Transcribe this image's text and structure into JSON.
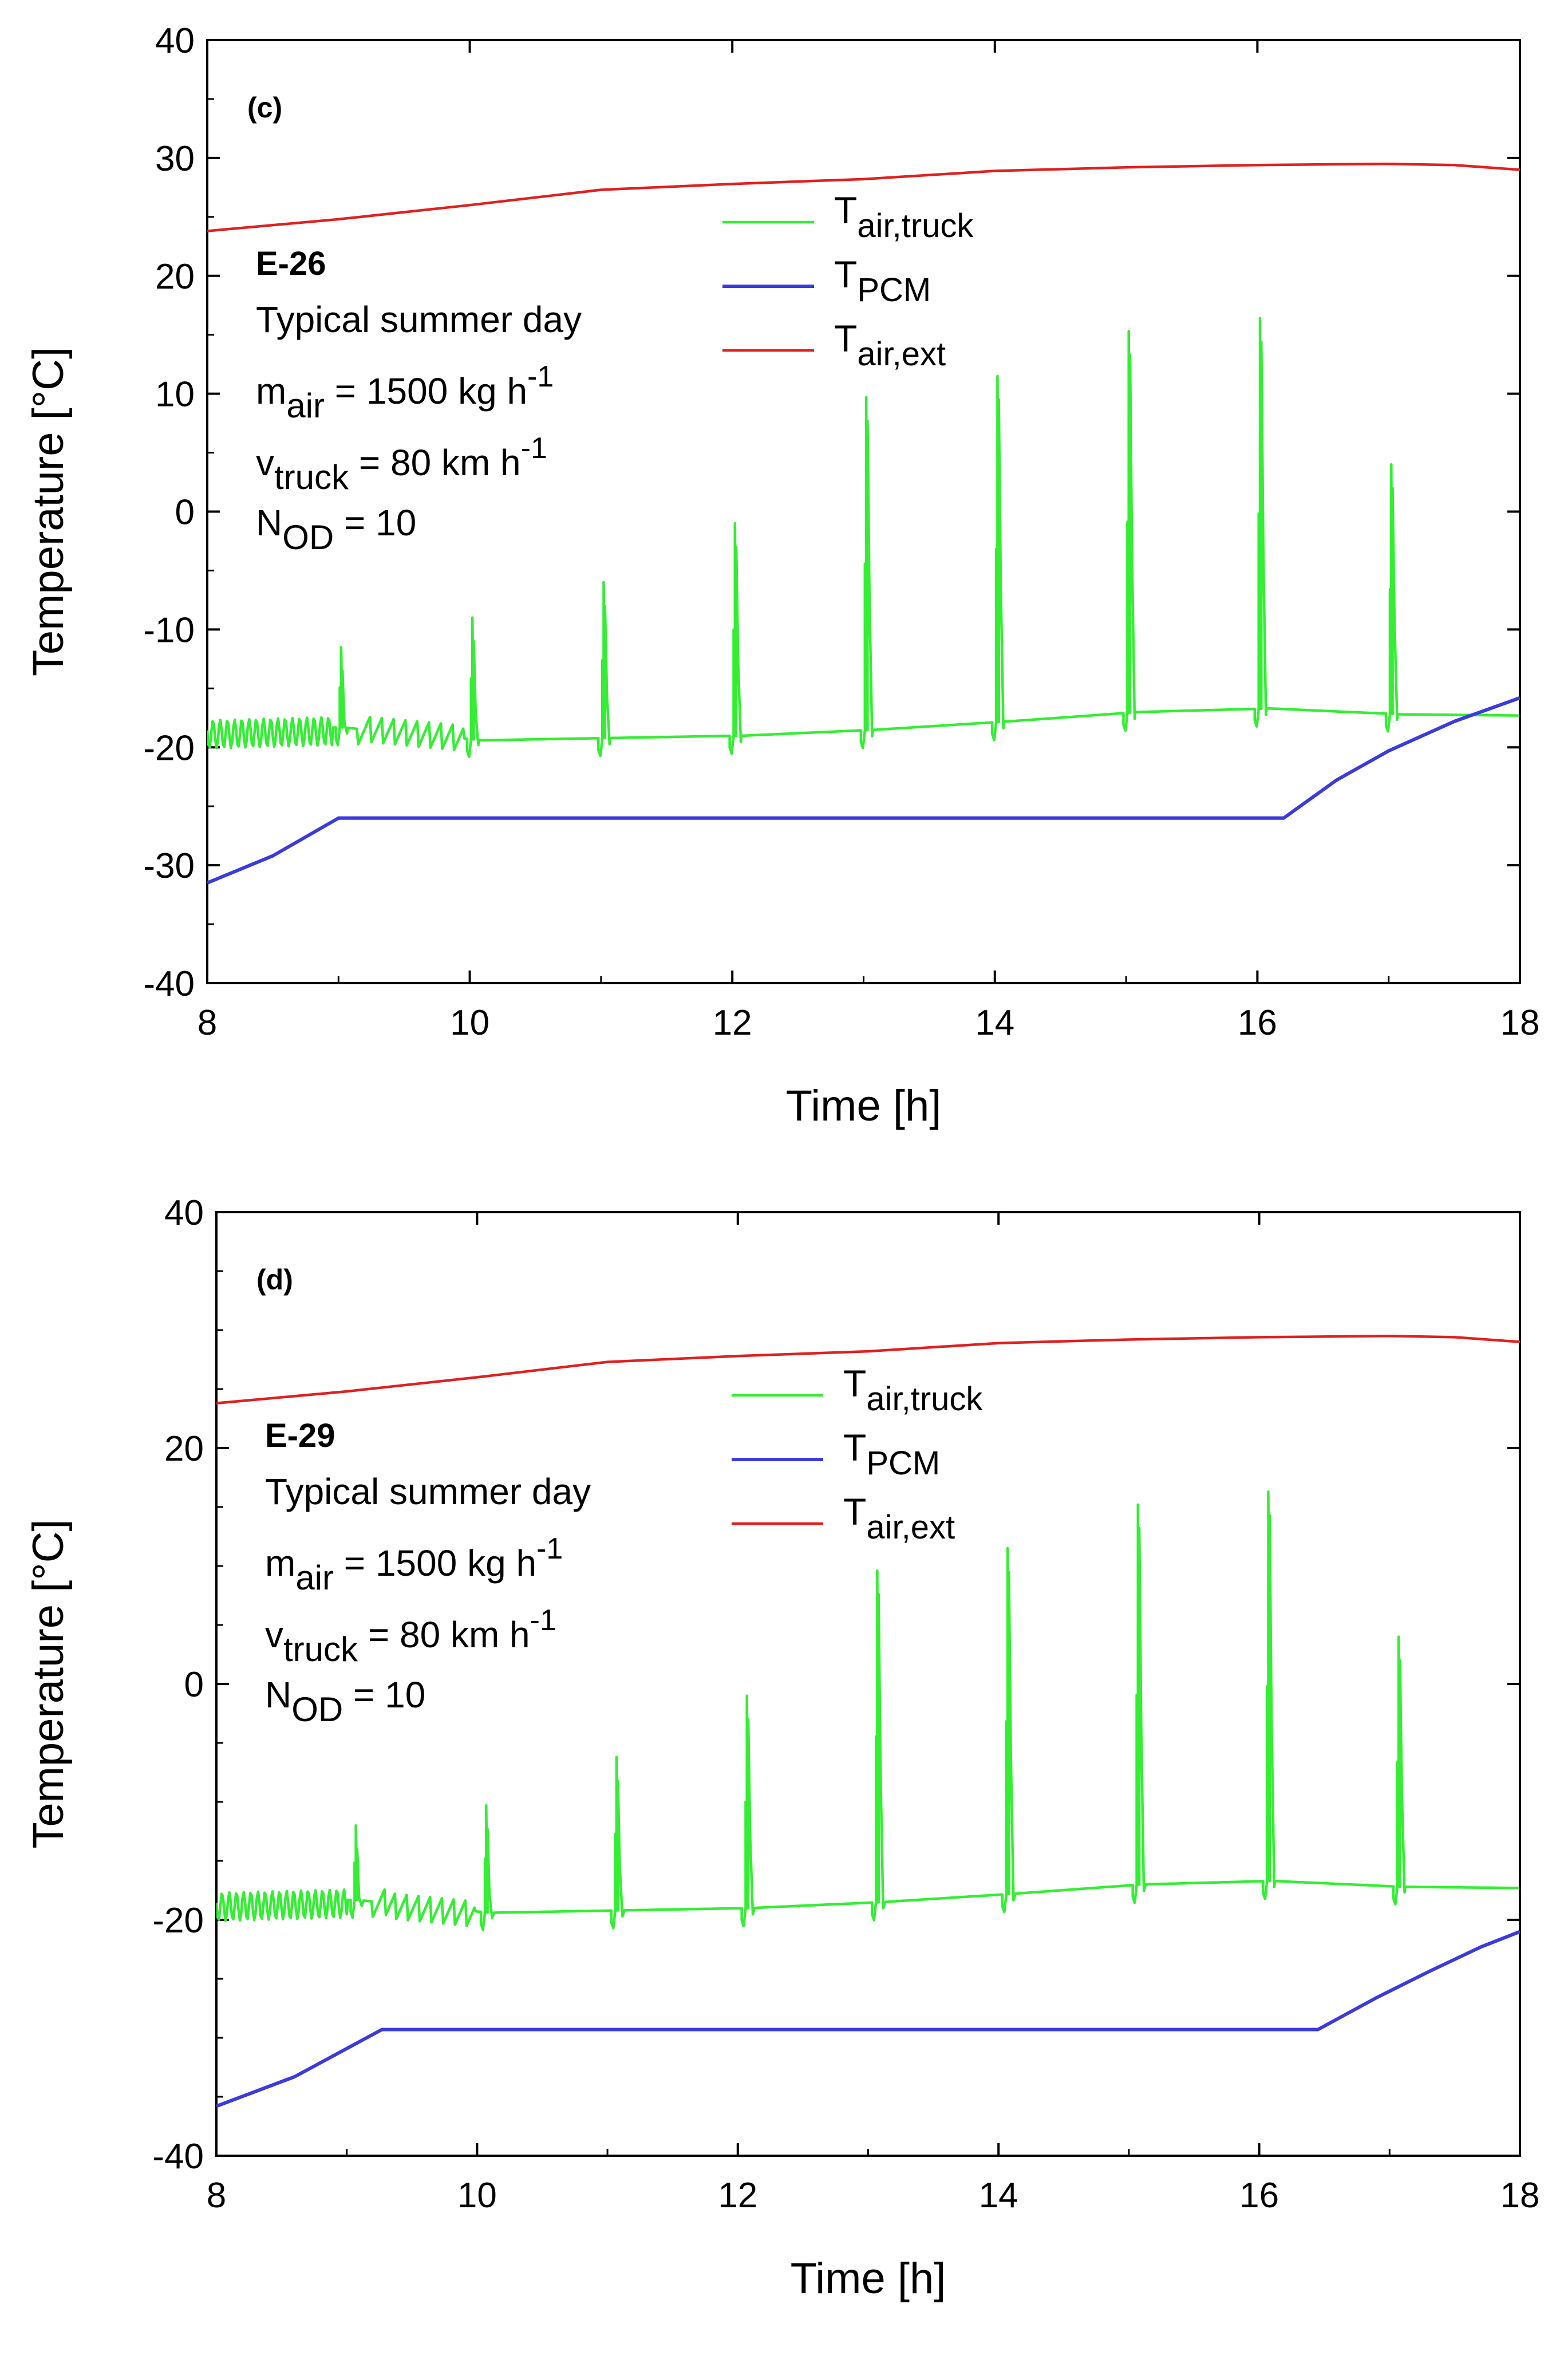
{
  "chart_data": [
    {
      "type": "line",
      "panel_label": "(c)",
      "case_label": "E-26",
      "annotations": {
        "day": "Typical summer day",
        "m_air": {
          "symbol": "m",
          "sub": "air",
          "text": " = 1500 kg h",
          "sup": "-1"
        },
        "v_truck": {
          "symbol": "v",
          "sub": "truck",
          "text": " = 80 km h",
          "sup": "-1"
        },
        "n_od": {
          "symbol": "N",
          "sub": "OD",
          "text": " = 10"
        }
      },
      "xlabel": "Time [h]",
      "ylabel": "Temperature [°C]",
      "xlim": [
        8,
        18
      ],
      "ylim": [
        -40,
        40
      ],
      "xticks": [
        8,
        10,
        12,
        14,
        16,
        18
      ],
      "yticks": [
        -40,
        -30,
        -20,
        -10,
        0,
        10,
        20,
        30,
        40
      ],
      "grid": false,
      "legend": {
        "placement": "top-center"
      },
      "series": [
        {
          "name": "T_air,truck",
          "label_main": "T",
          "label_sub": "air,truck",
          "color": "#33ee33",
          "baseline": [
            [
              8,
              -18.6
            ],
            [
              9.02,
              -18.3
            ],
            [
              10.1,
              -19.4
            ],
            [
              11.1,
              -19.2
            ],
            [
              12.1,
              -19.0
            ],
            [
              13.1,
              -18.5
            ],
            [
              14.1,
              -17.8
            ],
            [
              15.1,
              -17.0
            ],
            [
              16.1,
              -16.7
            ],
            [
              17.1,
              -17.2
            ],
            [
              18,
              -17.3
            ]
          ],
          "peaks": [
            [
              9.0,
              -11.5
            ],
            [
              10.0,
              -9.0
            ],
            [
              11.0,
              -6.0
            ],
            [
              12.0,
              -1.0
            ],
            [
              13.0,
              9.7
            ],
            [
              14.0,
              11.5
            ],
            [
              15.0,
              15.3
            ],
            [
              16.0,
              16.4
            ],
            [
              17.0,
              4.0
            ]
          ],
          "oscillation": [
            8,
            8.95
          ],
          "oscillation2": [
            9.15,
            9.95
          ]
        },
        {
          "name": "T_PCM",
          "label_main": "T",
          "label_sub": "PCM",
          "color": "#3b3bdc",
          "x": [
            8,
            8.5,
            9.0,
            12,
            16.2,
            16.6,
            17.0,
            17.5,
            18
          ],
          "y": [
            -31.5,
            -29.2,
            -26.0,
            -26.0,
            -26.0,
            -22.8,
            -20.3,
            -17.8,
            -15.8
          ]
        },
        {
          "name": "T_air,ext",
          "label_main": "T",
          "label_sub": "air,ext",
          "color": "#e02020",
          "x": [
            8,
            9,
            10,
            11,
            12,
            13,
            14,
            15,
            16,
            17,
            17.5,
            18
          ],
          "y": [
            23.8,
            24.8,
            26.0,
            27.3,
            27.8,
            28.2,
            28.9,
            29.2,
            29.4,
            29.5,
            29.4,
            29.0
          ]
        }
      ]
    },
    {
      "type": "line",
      "panel_label": "(d)",
      "case_label": "E-29",
      "annotations": {
        "day": "Typical summer day",
        "m_air": {
          "symbol": "m",
          "sub": "air",
          "text": " = 1500 kg h",
          "sup": "-1"
        },
        "v_truck": {
          "symbol": "v",
          "sub": "truck",
          "text": " = 80 km h",
          "sup": "-1"
        },
        "n_od": {
          "symbol": "N",
          "sub": "OD",
          "text": " = 10"
        }
      },
      "xlabel": "Time [h]",
      "ylabel": "Temperature [°C]",
      "xlim": [
        8,
        18
      ],
      "ylim": [
        -40,
        40
      ],
      "xticks": [
        8,
        10,
        12,
        14,
        16,
        18
      ],
      "yticks": [
        -40,
        -20,
        0,
        20,
        40
      ],
      "grid": false,
      "legend": {
        "placement": "top-center"
      },
      "series": [
        {
          "name": "T_air,truck",
          "label_main": "T",
          "label_sub": "air,truck",
          "color": "#33ee33",
          "baseline": [
            [
              8,
              -18.6
            ],
            [
              9.07,
              -18.3
            ],
            [
              10.1,
              -19.4
            ],
            [
              11.1,
              -19.2
            ],
            [
              12.1,
              -19.0
            ],
            [
              13.1,
              -18.5
            ],
            [
              14.1,
              -17.8
            ],
            [
              15.1,
              -17.0
            ],
            [
              16.1,
              -16.7
            ],
            [
              17.1,
              -17.2
            ],
            [
              18,
              -17.3
            ]
          ],
          "peaks": [
            [
              9.05,
              -12.0
            ],
            [
              10.05,
              -10.3
            ],
            [
              11.05,
              -6.2
            ],
            [
              12.05,
              -1.0
            ],
            [
              13.05,
              9.6
            ],
            [
              14.05,
              11.5
            ],
            [
              15.05,
              15.2
            ],
            [
              16.05,
              16.3
            ],
            [
              17.05,
              4.0
            ]
          ],
          "oscillation": [
            8,
            9.0
          ],
          "oscillation2": [
            9.2,
            9.98
          ]
        },
        {
          "name": "T_PCM",
          "label_main": "T",
          "label_sub": "PCM",
          "color": "#3b3bdc",
          "x": [
            8,
            8.6,
            9.27,
            12,
            16.45,
            16.9,
            17.3,
            17.7,
            18
          ],
          "y": [
            -35.8,
            -33.3,
            -29.3,
            -29.3,
            -29.3,
            -26.6,
            -24.4,
            -22.3,
            -21.0
          ]
        },
        {
          "name": "T_air,ext",
          "label_main": "T",
          "label_sub": "air,ext",
          "color": "#e02020",
          "x": [
            8,
            9,
            10,
            11,
            12,
            13,
            14,
            15,
            16,
            17,
            17.5,
            18
          ],
          "y": [
            23.8,
            24.8,
            26.0,
            27.3,
            27.8,
            28.2,
            28.9,
            29.2,
            29.4,
            29.5,
            29.4,
            29.0
          ]
        }
      ]
    }
  ]
}
